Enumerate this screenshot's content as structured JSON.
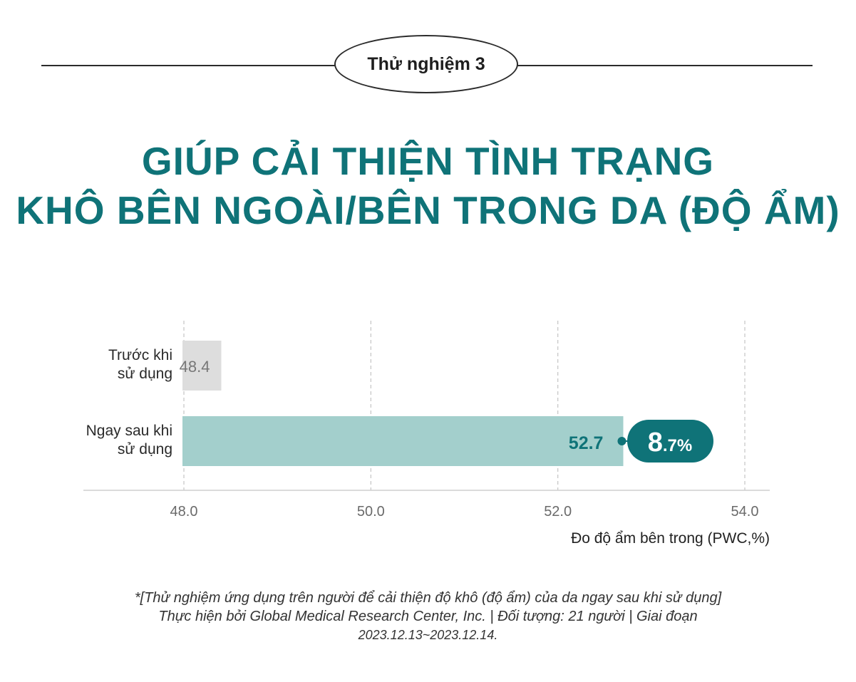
{
  "badge": "Thử nghiệm 3",
  "headline": {
    "line1": "GIÚP CẢI THIỆN TÌNH TRẠNG",
    "line2": "KHÔ BÊN NGOÀI/BÊN TRONG DA (ĐỘ ẨM)"
  },
  "chart_data": {
    "type": "bar",
    "orientation": "horizontal",
    "categories": [
      "Trước khi sử dụng",
      "Ngay sau khi sử dụng"
    ],
    "category_lines": [
      [
        "Trước khi",
        "sử dụng"
      ],
      [
        "Ngay sau khi",
        "sử dụng"
      ]
    ],
    "values": [
      48.4,
      52.7
    ],
    "value_labels": [
      "48.4",
      "52.7"
    ],
    "xlim": [
      48.0,
      54.0
    ],
    "ticks": [
      "48.0",
      "50.0",
      "52.0",
      "54.0"
    ],
    "tick_values": [
      48.0,
      50.0,
      52.0,
      54.0
    ],
    "xlabel": "Đo độ ẩm bên trong (PWC,%)",
    "grid": "dashed vertical",
    "annotation": {
      "value": "8.7%",
      "big": "8",
      "small": ".7%"
    },
    "colors": {
      "before_bar": "#dddddd",
      "after_bar": "#a3cfcc",
      "accent": "#0f7378",
      "before_label": "#777777"
    }
  },
  "footnote": {
    "line1": "*[Thử nghiệm ứng dụng trên người để cải thiện độ khô (độ ẩm) của da ngay sau khi sử dụng]",
    "line2": "Thực hiện bởi Global Medical Research Center, Inc. | Đối tượng: 21 người | Giai đoạn",
    "line3": "2023.12.13~2023.12.14."
  }
}
